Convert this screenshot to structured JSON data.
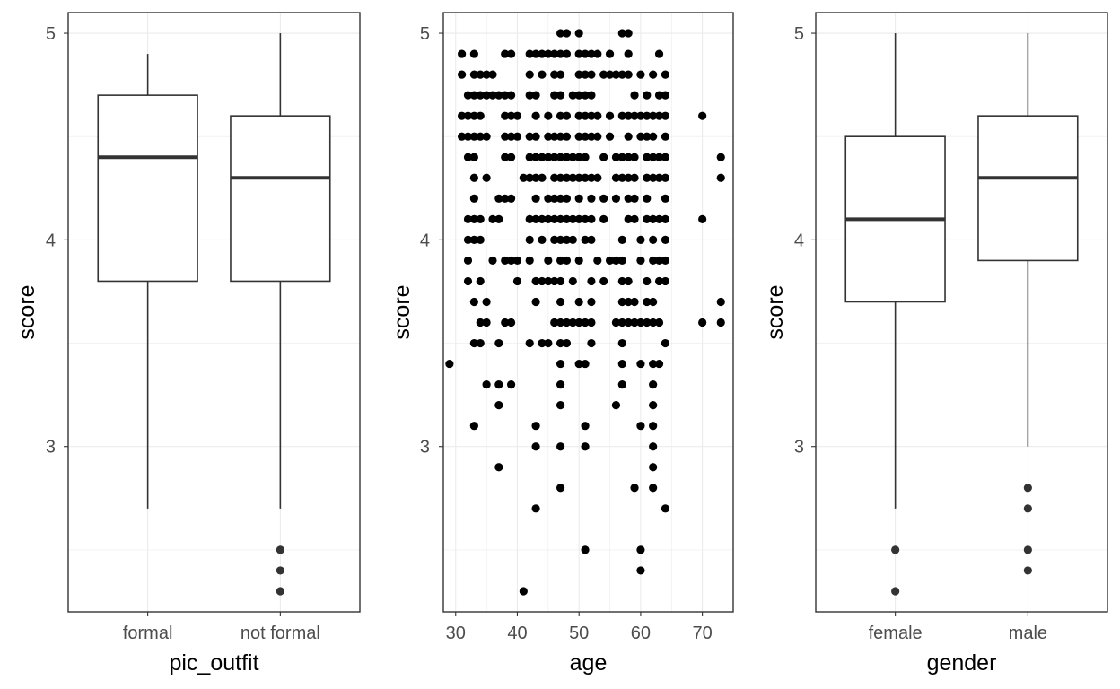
{
  "chart_data": [
    {
      "type": "box",
      "xlabel": "pic_outfit",
      "ylabel": "score",
      "categories": [
        "formal",
        "not formal"
      ],
      "ylim": [
        2.2,
        5.1
      ],
      "yticks": [
        3,
        4,
        5
      ],
      "grid": true,
      "boxes": [
        {
          "category": "formal",
          "lower_whisker": 2.7,
          "q1": 3.8,
          "median": 4.4,
          "q3": 4.7,
          "upper_whisker": 4.9,
          "outliers": []
        },
        {
          "category": "not formal",
          "lower_whisker": 2.7,
          "q1": 3.8,
          "median": 4.3,
          "q3": 4.6,
          "upper_whisker": 5.0,
          "outliers": [
            2.5,
            2.4,
            2.3
          ]
        }
      ]
    },
    {
      "type": "scatter",
      "xlabel": "age",
      "ylabel": "score",
      "xlim": [
        28,
        75
      ],
      "ylim": [
        2.2,
        5.1
      ],
      "xticks": [
        30,
        40,
        50,
        60,
        70
      ],
      "yticks": [
        3,
        4,
        5
      ],
      "grid": true,
      "points": [
        [
          29,
          3.4
        ],
        [
          31,
          4.9
        ],
        [
          31,
          4.8
        ],
        [
          31,
          4.6
        ],
        [
          31,
          4.5
        ],
        [
          32,
          4.7
        ],
        [
          32,
          4.6
        ],
        [
          32,
          4.5
        ],
        [
          32,
          4.4
        ],
        [
          32,
          4.1
        ],
        [
          32,
          4.0
        ],
        [
          32,
          3.9
        ],
        [
          32,
          3.8
        ],
        [
          33,
          4.9
        ],
        [
          33,
          4.8
        ],
        [
          33,
          4.7
        ],
        [
          33,
          4.6
        ],
        [
          33,
          4.5
        ],
        [
          33,
          4.4
        ],
        [
          33,
          4.3
        ],
        [
          33,
          4.2
        ],
        [
          33,
          4.1
        ],
        [
          33,
          4.0
        ],
        [
          33,
          3.7
        ],
        [
          33,
          3.5
        ],
        [
          33,
          3.1
        ],
        [
          34,
          4.8
        ],
        [
          34,
          4.7
        ],
        [
          34,
          4.6
        ],
        [
          34,
          4.5
        ],
        [
          34,
          4.1
        ],
        [
          34,
          4.0
        ],
        [
          34,
          3.8
        ],
        [
          34,
          3.6
        ],
        [
          34,
          3.5
        ],
        [
          35,
          4.8
        ],
        [
          35,
          4.7
        ],
        [
          35,
          4.5
        ],
        [
          35,
          4.3
        ],
        [
          35,
          3.7
        ],
        [
          35,
          3.6
        ],
        [
          35,
          3.3
        ],
        [
          36,
          4.8
        ],
        [
          36,
          4.7
        ],
        [
          36,
          4.1
        ],
        [
          36,
          3.9
        ],
        [
          37,
          4.7
        ],
        [
          37,
          4.2
        ],
        [
          37,
          4.1
        ],
        [
          37,
          3.5
        ],
        [
          37,
          3.3
        ],
        [
          37,
          3.2
        ],
        [
          37,
          2.9
        ],
        [
          38,
          4.9
        ],
        [
          38,
          4.7
        ],
        [
          38,
          4.6
        ],
        [
          38,
          4.5
        ],
        [
          38,
          4.4
        ],
        [
          38,
          4.2
        ],
        [
          38,
          3.9
        ],
        [
          38,
          3.6
        ],
        [
          39,
          4.9
        ],
        [
          39,
          4.7
        ],
        [
          39,
          4.6
        ],
        [
          39,
          4.5
        ],
        [
          39,
          4.4
        ],
        [
          39,
          4.2
        ],
        [
          39,
          3.9
        ],
        [
          39,
          3.6
        ],
        [
          39,
          3.3
        ],
        [
          40,
          4.6
        ],
        [
          40,
          4.5
        ],
        [
          40,
          3.9
        ],
        [
          40,
          3.8
        ],
        [
          41,
          4.3
        ],
        [
          41,
          2.3
        ],
        [
          42,
          4.9
        ],
        [
          42,
          4.8
        ],
        [
          42,
          4.7
        ],
        [
          42,
          4.5
        ],
        [
          42,
          4.4
        ],
        [
          42,
          4.3
        ],
        [
          42,
          4.1
        ],
        [
          42,
          4.0
        ],
        [
          42,
          3.9
        ],
        [
          42,
          3.5
        ],
        [
          43,
          4.9
        ],
        [
          43,
          4.7
        ],
        [
          43,
          4.6
        ],
        [
          43,
          4.5
        ],
        [
          43,
          4.4
        ],
        [
          43,
          4.3
        ],
        [
          43,
          4.2
        ],
        [
          43,
          4.1
        ],
        [
          43,
          3.8
        ],
        [
          43,
          3.7
        ],
        [
          43,
          3.1
        ],
        [
          43,
          3.0
        ],
        [
          43,
          2.7
        ],
        [
          44,
          4.9
        ],
        [
          44,
          4.8
        ],
        [
          44,
          4.4
        ],
        [
          44,
          4.3
        ],
        [
          44,
          4.1
        ],
        [
          44,
          4.0
        ],
        [
          44,
          3.8
        ],
        [
          44,
          3.5
        ],
        [
          45,
          4.9
        ],
        [
          45,
          4.6
        ],
        [
          45,
          4.5
        ],
        [
          45,
          4.4
        ],
        [
          45,
          4.2
        ],
        [
          45,
          4.1
        ],
        [
          45,
          3.9
        ],
        [
          45,
          3.8
        ],
        [
          45,
          3.5
        ],
        [
          46,
          4.9
        ],
        [
          46,
          4.8
        ],
        [
          46,
          4.7
        ],
        [
          46,
          4.5
        ],
        [
          46,
          4.4
        ],
        [
          46,
          4.3
        ],
        [
          46,
          4.2
        ],
        [
          46,
          4.1
        ],
        [
          46,
          4.0
        ],
        [
          46,
          3.8
        ],
        [
          46,
          3.6
        ],
        [
          47,
          5.0
        ],
        [
          47,
          4.9
        ],
        [
          47,
          4.8
        ],
        [
          47,
          4.7
        ],
        [
          47,
          4.6
        ],
        [
          47,
          4.5
        ],
        [
          47,
          4.4
        ],
        [
          47,
          4.3
        ],
        [
          47,
          4.2
        ],
        [
          47,
          4.1
        ],
        [
          47,
          4.0
        ],
        [
          47,
          3.9
        ],
        [
          47,
          3.8
        ],
        [
          47,
          3.7
        ],
        [
          47,
          3.6
        ],
        [
          47,
          3.5
        ],
        [
          47,
          3.4
        ],
        [
          47,
          3.3
        ],
        [
          47,
          3.2
        ],
        [
          47,
          3.0
        ],
        [
          47,
          2.8
        ],
        [
          48,
          5.0
        ],
        [
          48,
          4.9
        ],
        [
          48,
          4.6
        ],
        [
          48,
          4.5
        ],
        [
          48,
          4.4
        ],
        [
          48,
          4.3
        ],
        [
          48,
          4.2
        ],
        [
          48,
          4.1
        ],
        [
          48,
          4.0
        ],
        [
          48,
          3.9
        ],
        [
          48,
          3.6
        ],
        [
          48,
          3.5
        ],
        [
          49,
          4.7
        ],
        [
          49,
          4.4
        ],
        [
          49,
          4.3
        ],
        [
          49,
          4.1
        ],
        [
          49,
          4.0
        ],
        [
          49,
          3.8
        ],
        [
          49,
          3.6
        ],
        [
          50,
          5.0
        ],
        [
          50,
          4.9
        ],
        [
          50,
          4.8
        ],
        [
          50,
          4.7
        ],
        [
          50,
          4.6
        ],
        [
          50,
          4.5
        ],
        [
          50,
          4.4
        ],
        [
          50,
          4.3
        ],
        [
          50,
          4.2
        ],
        [
          50,
          4.1
        ],
        [
          50,
          3.9
        ],
        [
          50,
          3.7
        ],
        [
          50,
          3.6
        ],
        [
          50,
          3.4
        ],
        [
          51,
          4.9
        ],
        [
          51,
          4.8
        ],
        [
          51,
          4.7
        ],
        [
          51,
          4.6
        ],
        [
          51,
          4.5
        ],
        [
          51,
          4.4
        ],
        [
          51,
          4.3
        ],
        [
          51,
          4.1
        ],
        [
          51,
          4.0
        ],
        [
          51,
          3.6
        ],
        [
          51,
          3.4
        ],
        [
          51,
          3.1
        ],
        [
          51,
          3.0
        ],
        [
          51,
          2.5
        ],
        [
          52,
          4.9
        ],
        [
          52,
          4.8
        ],
        [
          52,
          4.7
        ],
        [
          52,
          4.6
        ],
        [
          52,
          4.5
        ],
        [
          52,
          4.3
        ],
        [
          52,
          4.2
        ],
        [
          52,
          4.1
        ],
        [
          52,
          4.0
        ],
        [
          52,
          3.8
        ],
        [
          52,
          3.7
        ],
        [
          52,
          3.6
        ],
        [
          52,
          3.5
        ],
        [
          53,
          4.9
        ],
        [
          53,
          4.6
        ],
        [
          53,
          4.5
        ],
        [
          53,
          4.3
        ],
        [
          53,
          3.9
        ],
        [
          54,
          4.8
        ],
        [
          54,
          4.4
        ],
        [
          54,
          4.2
        ],
        [
          54,
          4.1
        ],
        [
          54,
          3.8
        ],
        [
          55,
          4.9
        ],
        [
          55,
          4.8
        ],
        [
          55,
          4.6
        ],
        [
          55,
          4.5
        ],
        [
          55,
          3.9
        ],
        [
          56,
          4.8
        ],
        [
          56,
          4.4
        ],
        [
          56,
          4.3
        ],
        [
          56,
          4.2
        ],
        [
          56,
          3.9
        ],
        [
          56,
          3.6
        ],
        [
          56,
          3.2
        ],
        [
          57,
          5.0
        ],
        [
          57,
          4.8
        ],
        [
          57,
          4.6
        ],
        [
          57,
          4.4
        ],
        [
          57,
          4.3
        ],
        [
          57,
          4.0
        ],
        [
          57,
          3.9
        ],
        [
          57,
          3.8
        ],
        [
          57,
          3.7
        ],
        [
          57,
          3.6
        ],
        [
          57,
          3.5
        ],
        [
          57,
          3.4
        ],
        [
          57,
          3.3
        ],
        [
          58,
          5.0
        ],
        [
          58,
          4.9
        ],
        [
          58,
          4.8
        ],
        [
          58,
          4.6
        ],
        [
          58,
          4.5
        ],
        [
          58,
          4.4
        ],
        [
          58,
          4.3
        ],
        [
          58,
          4.2
        ],
        [
          58,
          4.1
        ],
        [
          58,
          3.8
        ],
        [
          58,
          3.7
        ],
        [
          58,
          3.6
        ],
        [
          59,
          4.7
        ],
        [
          59,
          4.6
        ],
        [
          59,
          4.4
        ],
        [
          59,
          4.3
        ],
        [
          59,
          4.2
        ],
        [
          59,
          4.1
        ],
        [
          59,
          3.7
        ],
        [
          59,
          3.6
        ],
        [
          59,
          2.8
        ],
        [
          60,
          4.8
        ],
        [
          60,
          4.6
        ],
        [
          60,
          4.5
        ],
        [
          60,
          4.0
        ],
        [
          60,
          3.9
        ],
        [
          60,
          3.6
        ],
        [
          60,
          3.4
        ],
        [
          60,
          3.1
        ],
        [
          60,
          2.5
        ],
        [
          60,
          2.4
        ],
        [
          61,
          4.7
        ],
        [
          61,
          4.6
        ],
        [
          61,
          4.5
        ],
        [
          61,
          4.4
        ],
        [
          61,
          4.3
        ],
        [
          61,
          4.2
        ],
        [
          61,
          4.1
        ],
        [
          61,
          3.8
        ],
        [
          61,
          3.7
        ],
        [
          61,
          3.6
        ],
        [
          62,
          4.8
        ],
        [
          62,
          4.6
        ],
        [
          62,
          4.5
        ],
        [
          62,
          4.4
        ],
        [
          62,
          4.3
        ],
        [
          62,
          4.1
        ],
        [
          62,
          4.0
        ],
        [
          62,
          3.9
        ],
        [
          62,
          3.7
        ],
        [
          62,
          3.6
        ],
        [
          62,
          3.4
        ],
        [
          62,
          3.3
        ],
        [
          62,
          3.2
        ],
        [
          62,
          3.1
        ],
        [
          62,
          3.0
        ],
        [
          62,
          2.9
        ],
        [
          62,
          2.8
        ],
        [
          63,
          4.9
        ],
        [
          63,
          4.7
        ],
        [
          63,
          4.6
        ],
        [
          63,
          4.4
        ],
        [
          63,
          4.3
        ],
        [
          63,
          4.1
        ],
        [
          63,
          3.9
        ],
        [
          63,
          3.8
        ],
        [
          63,
          3.6
        ],
        [
          63,
          3.4
        ],
        [
          64,
          4.8
        ],
        [
          64,
          4.7
        ],
        [
          64,
          4.6
        ],
        [
          64,
          4.5
        ],
        [
          64,
          4.4
        ],
        [
          64,
          4.3
        ],
        [
          64,
          4.2
        ],
        [
          64,
          4.1
        ],
        [
          64,
          4.0
        ],
        [
          64,
          3.9
        ],
        [
          64,
          3.8
        ],
        [
          64,
          3.5
        ],
        [
          64,
          2.7
        ],
        [
          70,
          4.6
        ],
        [
          70,
          4.1
        ],
        [
          70,
          3.6
        ],
        [
          73,
          4.4
        ],
        [
          73,
          4.3
        ],
        [
          73,
          3.7
        ],
        [
          73,
          3.6
        ]
      ]
    },
    {
      "type": "box",
      "xlabel": "gender",
      "ylabel": "score",
      "categories": [
        "female",
        "male"
      ],
      "ylim": [
        2.2,
        5.1
      ],
      "yticks": [
        3,
        4,
        5
      ],
      "grid": true,
      "boxes": [
        {
          "category": "female",
          "lower_whisker": 2.7,
          "q1": 3.7,
          "median": 4.1,
          "q3": 4.5,
          "upper_whisker": 5.0,
          "outliers": [
            2.5,
            2.3
          ]
        },
        {
          "category": "male",
          "lower_whisker": 3.0,
          "q1": 3.9,
          "median": 4.3,
          "q3": 4.6,
          "upper_whisker": 5.0,
          "outliers": [
            2.8,
            2.7,
            2.5,
            2.4
          ]
        }
      ]
    }
  ]
}
